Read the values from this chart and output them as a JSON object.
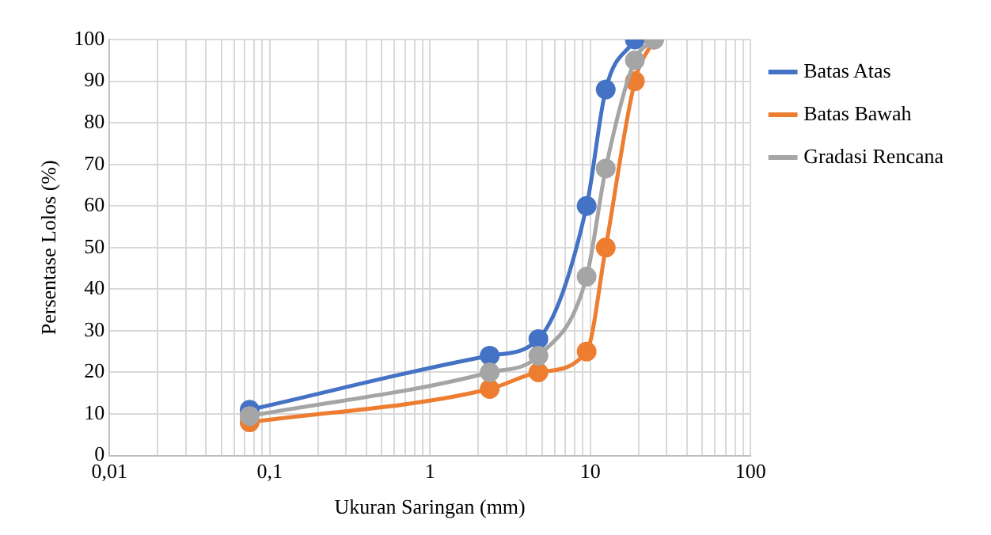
{
  "chart_data": {
    "type": "line",
    "xlabel": "Ukuran Saringan (mm)",
    "ylabel": "Persentase Lolos (%)",
    "log": "x",
    "grid": true,
    "legend": "right",
    "marker": "circle",
    "line_style": "solid",
    "xlim": [
      0.01,
      100
    ],
    "xticks": [
      {
        "value": 0.01,
        "label": "0,01"
      },
      {
        "value": 0.02,
        "label": null
      },
      {
        "value": 0.03,
        "label": null
      },
      {
        "value": 0.04,
        "label": null
      },
      {
        "value": 0.05,
        "label": null
      },
      {
        "value": 0.06,
        "label": null
      },
      {
        "value": 0.07,
        "label": null
      },
      {
        "value": 0.08,
        "label": null
      },
      {
        "value": 0.09,
        "label": null
      },
      {
        "value": 0.1,
        "label": "0,1"
      },
      {
        "value": 0.2,
        "label": null
      },
      {
        "value": 0.3,
        "label": null
      },
      {
        "value": 0.4,
        "label": null
      },
      {
        "value": 0.5,
        "label": null
      },
      {
        "value": 0.6,
        "label": null
      },
      {
        "value": 0.7,
        "label": null
      },
      {
        "value": 0.8,
        "label": null
      },
      {
        "value": 0.9,
        "label": null
      },
      1,
      {
        "value": 2,
        "label": null
      },
      {
        "value": 3,
        "label": null
      },
      {
        "value": 4,
        "label": null
      },
      {
        "value": 5,
        "label": null
      },
      {
        "value": 6,
        "label": null
      },
      {
        "value": 7,
        "label": null
      },
      {
        "value": 8,
        "label": null
      },
      {
        "value": 9,
        "label": null
      },
      10,
      {
        "value": 20,
        "label": null
      },
      {
        "value": 30,
        "label": null
      },
      {
        "value": 40,
        "label": null
      },
      {
        "value": 50,
        "label": null
      },
      {
        "value": 60,
        "label": null
      },
      {
        "value": 70,
        "label": null
      },
      {
        "value": 80,
        "label": null
      },
      {
        "value": 90,
        "label": null
      },
      100
    ],
    "ylim": [
      0,
      100
    ],
    "yticks": [
      0,
      10,
      20,
      30,
      40,
      50,
      60,
      70,
      80,
      90,
      100
    ],
    "series": [
      {
        "name": "Batas Atas",
        "color": "#4472c4",
        "x": [
          0.075,
          2.36,
          4.75,
          9.5,
          12.5,
          19
        ],
        "values": [
          11,
          24,
          28,
          60,
          88,
          100
        ]
      },
      {
        "name": "Batas Bawah",
        "color": "#ed7d31",
        "x": [
          0.075,
          2.36,
          4.75,
          9.5,
          12.5,
          19,
          25
        ],
        "values": [
          8,
          16,
          20,
          25,
          50,
          90,
          100
        ]
      },
      {
        "name": "Gradasi Rencana",
        "color": "#a5a5a5",
        "x": [
          0.075,
          2.36,
          4.75,
          9.5,
          12.5,
          19,
          25
        ],
        "values": [
          9.5,
          20,
          24,
          43,
          69,
          95,
          100
        ]
      }
    ]
  }
}
